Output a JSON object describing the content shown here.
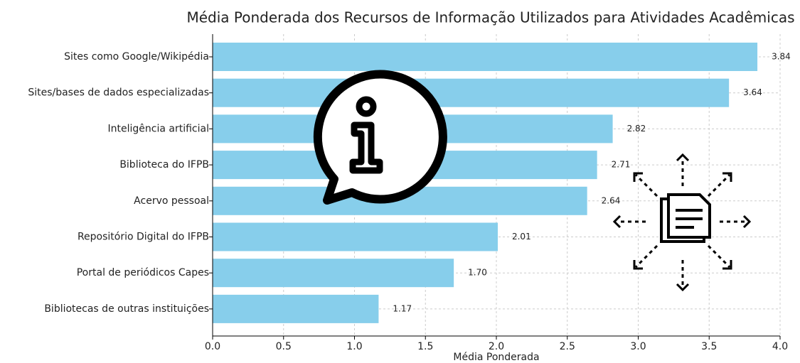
{
  "chart_data": {
    "type": "bar",
    "orientation": "horizontal",
    "title": "Média Ponderada dos Recursos de Informação Utilizados para Atividades Acadêmicas",
    "xlabel": "Média Ponderada",
    "categories": [
      "Sites como Google/Wikipédia",
      "Sites/bases de dados especializadas",
      "Inteligência artificial",
      "Biblioteca do IFPB",
      "Acervo pessoal",
      "Repositório Digital do IFPB",
      "Portal de periódicos Capes",
      "Bibliotecas de outras instituições"
    ],
    "values": [
      3.84,
      3.64,
      2.82,
      2.71,
      2.64,
      2.01,
      1.7,
      1.17
    ],
    "value_labels": [
      "3.84",
      "3.64",
      "2.82",
      "2.71",
      "2.64",
      "2.01",
      "1.70",
      "1.17"
    ],
    "color": "#87ceeb",
    "xlim": [
      0,
      4.0
    ],
    "xticks": [
      {
        "value": 0,
        "label": "0.0"
      },
      {
        "value": 0.5,
        "label": "0.5"
      },
      {
        "value": 1,
        "label": "1.0"
      },
      {
        "value": 1.5,
        "label": "1.5"
      },
      {
        "value": 2,
        "label": "2.0"
      },
      {
        "value": 2.5,
        "label": "2.5"
      },
      {
        "value": 3,
        "label": "3.0"
      },
      {
        "value": 3.5,
        "label": "3.5"
      },
      {
        "value": 4,
        "label": "4.0"
      }
    ],
    "grid": true
  }
}
